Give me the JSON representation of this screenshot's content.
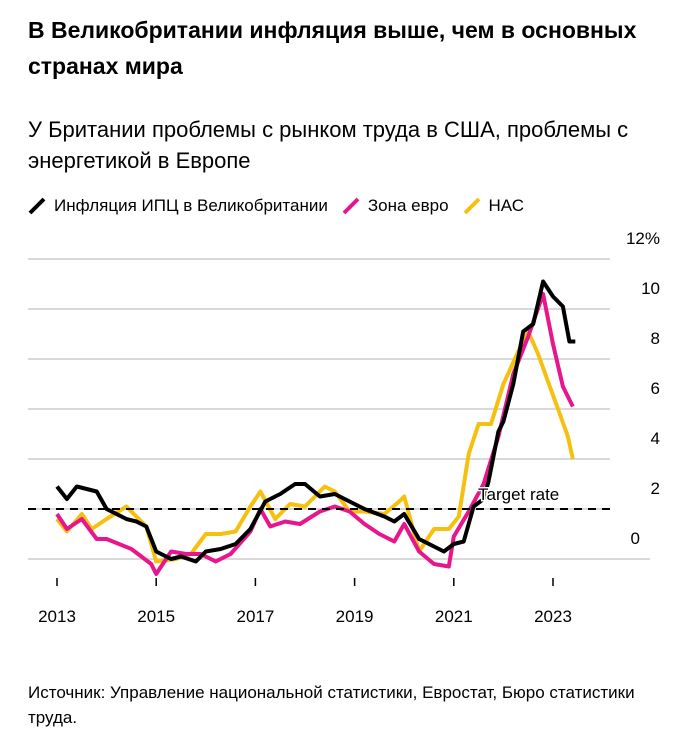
{
  "title": "В Великобритании инфляция выше, чем в основных странах мира",
  "subtitle": "У Британии проблемы с рынком труда в США, проблемы с энергетикой в Европе",
  "source": "Источник: Управление национальной статистики, Евростат, Бюро статистики труда.",
  "chart_data": {
    "type": "line",
    "title": "В Великобритании инфляция выше, чем в основных странах мира",
    "xlabel": "",
    "ylabel": "",
    "xlim": [
      2013,
      2023.6
    ],
    "ylim": [
      -0.8,
      12
    ],
    "grid": true,
    "legend": "top",
    "x_ticks": [
      "2013",
      "2015",
      "2017",
      "2019",
      "2021",
      "2023"
    ],
    "y_ticks": [
      "12%",
      "10",
      "8",
      "6",
      "4",
      "2",
      "0"
    ],
    "y_tick_values": [
      12,
      10,
      8,
      6,
      4,
      2,
      0
    ],
    "reference_line": {
      "label": "Target rate",
      "value": 2
    },
    "series": [
      {
        "name": "Инфляция ИПЦ в Великобритании",
        "color": "#000000",
        "x": [
          2013.0,
          2013.2,
          2013.4,
          2013.8,
          2014.0,
          2014.4,
          2014.6,
          2014.8,
          2015.0,
          2015.3,
          2015.5,
          2015.8,
          2016.0,
          2016.3,
          2016.6,
          2016.9,
          2017.2,
          2017.5,
          2017.8,
          2018.0,
          2018.3,
          2018.6,
          2018.9,
          2019.2,
          2019.6,
          2019.8,
          2020.0,
          2020.3,
          2020.6,
          2020.8,
          2021.0,
          2021.2,
          2021.4,
          2021.6,
          2021.7,
          2021.9,
          2022.0,
          2022.2,
          2022.4,
          2022.6,
          2022.8,
          2023.0,
          2023.2,
          2023.33,
          2023.45
        ],
        "y": [
          2.9,
          2.4,
          2.9,
          2.7,
          2.0,
          1.6,
          1.5,
          1.3,
          0.3,
          0.0,
          0.1,
          -0.1,
          0.3,
          0.4,
          0.6,
          1.2,
          2.3,
          2.6,
          3.0,
          3.0,
          2.5,
          2.6,
          2.3,
          2.0,
          1.7,
          1.5,
          1.8,
          0.8,
          0.5,
          0.3,
          0.6,
          0.7,
          2.1,
          2.4,
          3.1,
          5.1,
          5.5,
          7.0,
          9.1,
          9.4,
          11.1,
          10.5,
          10.1,
          8.7,
          8.7
        ]
      },
      {
        "name": "Зона евро",
        "color": "#e8168c",
        "x": [
          2013.0,
          2013.2,
          2013.5,
          2013.8,
          2014.0,
          2014.5,
          2014.9,
          2015.0,
          2015.3,
          2015.6,
          2015.9,
          2016.2,
          2016.5,
          2016.9,
          2017.1,
          2017.3,
          2017.6,
          2017.9,
          2018.3,
          2018.6,
          2018.9,
          2019.2,
          2019.5,
          2019.8,
          2020.0,
          2020.3,
          2020.6,
          2020.9,
          2021.0,
          2021.3,
          2021.6,
          2021.9,
          2022.2,
          2022.5,
          2022.8,
          2023.0,
          2023.2,
          2023.4
        ],
        "y": [
          1.8,
          1.2,
          1.6,
          0.8,
          0.8,
          0.4,
          -0.2,
          -0.6,
          0.3,
          0.2,
          0.2,
          -0.1,
          0.2,
          1.1,
          2.0,
          1.3,
          1.5,
          1.4,
          1.9,
          2.1,
          1.9,
          1.4,
          1.0,
          0.7,
          1.4,
          0.3,
          -0.2,
          -0.3,
          0.9,
          1.9,
          3.0,
          4.9,
          7.4,
          8.9,
          10.6,
          8.6,
          6.9,
          6.1
        ]
      },
      {
        "name": "НАС",
        "color": "#f5c00f",
        "x": [
          2013.0,
          2013.2,
          2013.5,
          2013.7,
          2014.0,
          2014.4,
          2014.8,
          2015.0,
          2015.4,
          2015.7,
          2016.0,
          2016.3,
          2016.6,
          2016.9,
          2017.1,
          2017.4,
          2017.7,
          2018.0,
          2018.4,
          2018.6,
          2018.9,
          2019.2,
          2019.6,
          2019.9,
          2020.0,
          2020.3,
          2020.6,
          2020.9,
          2021.1,
          2021.3,
          2021.5,
          2021.75,
          2022.0,
          2022.3,
          2022.5,
          2022.7,
          2022.9,
          2023.1,
          2023.3,
          2023.4
        ],
        "y": [
          1.6,
          1.1,
          1.8,
          1.2,
          1.6,
          2.1,
          1.3,
          -0.1,
          0.0,
          0.2,
          1.0,
          1.0,
          1.1,
          2.1,
          2.7,
          1.6,
          2.2,
          2.1,
          2.9,
          2.7,
          1.9,
          1.9,
          1.8,
          2.3,
          2.5,
          0.3,
          1.2,
          1.2,
          1.7,
          4.2,
          5.4,
          5.4,
          7.0,
          8.3,
          9.1,
          8.2,
          7.1,
          6.0,
          4.9,
          4.0
        ]
      }
    ]
  }
}
